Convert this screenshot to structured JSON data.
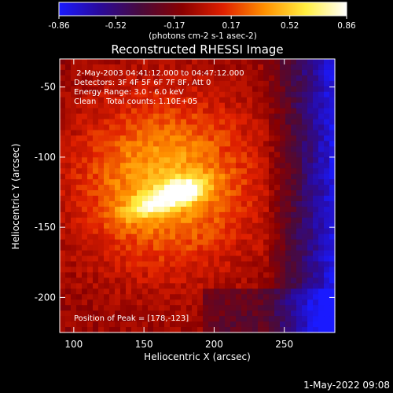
{
  "chart_data": {
    "type": "heatmap",
    "title": "Reconstructed RHESSI Image",
    "colorbar": {
      "range": [
        -0.86,
        0.86
      ],
      "tick_labels": [
        "-0.86",
        "-0.52",
        "-0.17",
        "0.17",
        "0.52",
        "0.86"
      ],
      "unit_label": "(photons cm-2 s-1 asec-2)",
      "colormap": [
        "#1a1aff",
        "#2a0a9a",
        "#4a0a3a",
        "#8a0000",
        "#e02000",
        "#ff9000",
        "#ffee40",
        "#ffffff"
      ]
    },
    "xlabel": "Heliocentric X (arcsec)",
    "ylabel": "Heliocentric Y (arcsec)",
    "xlim": [
      90,
      286
    ],
    "ylim": [
      -225,
      -30
    ],
    "x_ticks": [
      100,
      150,
      200,
      250
    ],
    "y_ticks": [
      -50,
      -100,
      -150,
      -200
    ],
    "annotations": [
      " 2-May-2003 04:41:12.000 to 04:47:12.000",
      "Detectors: 3F 4F 5F 6F 7F 8F, Att 0",
      "Energy Range: 3.0 - 6.0 keV",
      "Clean    Total counts: 1.10E+05"
    ],
    "peak_label": "Position of Peak = [178,-123]",
    "peak": {
      "x": 178,
      "y": -123,
      "value": 0.86
    }
  },
  "footer": {
    "timestamp": "1-May-2022 09:08"
  }
}
